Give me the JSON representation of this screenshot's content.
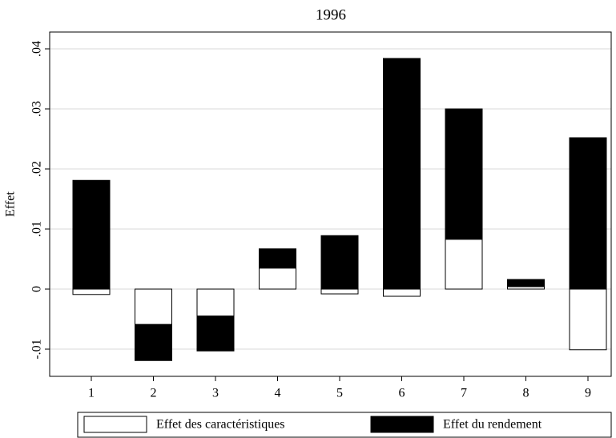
{
  "chart_data": {
    "type": "bar",
    "stacked": true,
    "title": "1996",
    "y_label": "Effet",
    "categories": [
      "1",
      "2",
      "3",
      "4",
      "5",
      "6",
      "7",
      "8",
      "9"
    ],
    "series": [
      {
        "name": "Effet des caractéristiques",
        "color": "#ffffff",
        "values": [
          -0.0009,
          -0.0059,
          -0.0045,
          0.0035,
          -0.0008,
          -0.0012,
          0.0083,
          0.0004,
          -0.0101
        ]
      },
      {
        "name": "Effet du rendement",
        "color": "#000000",
        "values": [
          0.0181,
          -0.006,
          -0.0058,
          0.0032,
          0.0089,
          0.0384,
          0.0217,
          0.0012,
          0.0252
        ]
      }
    ],
    "ylim": [
      -0.01453,
      0.0428
    ],
    "yticks": [
      {
        "value": -0.01,
        "label": "-.01"
      },
      0,
      {
        "value": 0.01,
        "label": ".01"
      },
      {
        "value": 0.02,
        "label": ".02"
      },
      {
        "value": 0.03,
        "label": ".03"
      },
      {
        "value": 0.04,
        "label": ".04"
      }
    ],
    "grid": true,
    "legend": "bottom"
  }
}
